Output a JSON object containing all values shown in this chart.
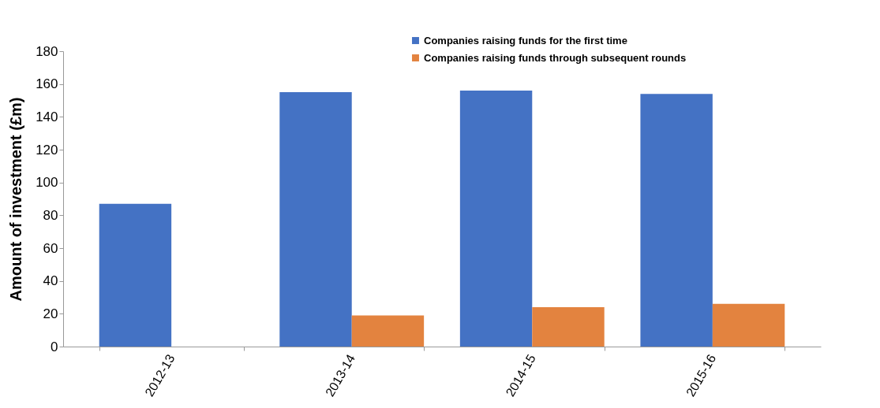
{
  "chart_data": {
    "type": "bar",
    "categories": [
      "2012-13",
      "2013-14",
      "2014-15",
      "2015-16"
    ],
    "ylabel": "Amount of investment (£m)",
    "series": [
      {
        "name": "Companies raising funds for the first time",
        "color": "#4472c4",
        "values": [
          87,
          155,
          156,
          154
        ]
      },
      {
        "name": "Companies raising funds through subsequent rounds",
        "color": "#e3833f",
        "values": [
          null,
          19,
          24,
          26
        ]
      }
    ],
    "ylim": [
      0,
      180
    ],
    "yticks": [
      0,
      20,
      40,
      60,
      80,
      100,
      120,
      140,
      160,
      180
    ],
    "grid": false,
    "legend": "top right"
  }
}
